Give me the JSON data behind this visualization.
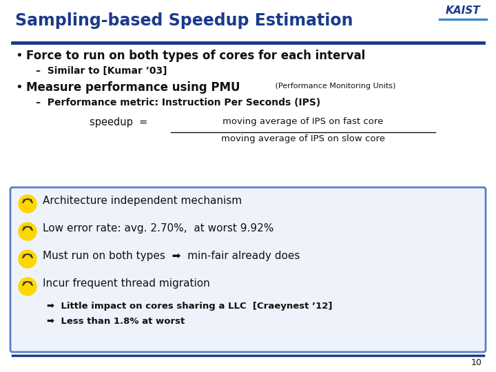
{
  "title": "Sampling-based Speedup Estimation",
  "title_color": "#1a3a8c",
  "title_fontsize": 17,
  "background_color": "#FFFFFF",
  "separator_color": "#1a3a8c",
  "bullet1": "Force to run on both types of cores for each interval",
  "bullet1_sub": "–  Similar to [Kumar ’03]",
  "bullet2_main": "Measure performance using PMU",
  "bullet2_small": " (Performance Monitoring Units)",
  "bullet2_sub": "–  Performance metric: Instruction Per Seconds (IPS)",
  "formula_left": "speedup  =",
  "formula_num": "moving average of IPS on fast core",
  "formula_den": "moving average of IPS on slow core",
  "box_items": [
    "Architecture independent mechanism",
    "Low error rate: avg. 2.70%,  at worst 9.92%",
    "Must run on both types  ➡  min-fair already does",
    "Incur frequent thread migration"
  ],
  "box_sub1": "➡  Little impact on cores sharing a LLC  [Craeynest ’12]",
  "box_sub2": "➡  Less than 1.8% at worst",
  "page_num": "10",
  "box_border_color": "#5b7fc4",
  "box_bg_color": "#eef2fa",
  "text_color": "#111111",
  "kaist_color": "#1a3a8c"
}
